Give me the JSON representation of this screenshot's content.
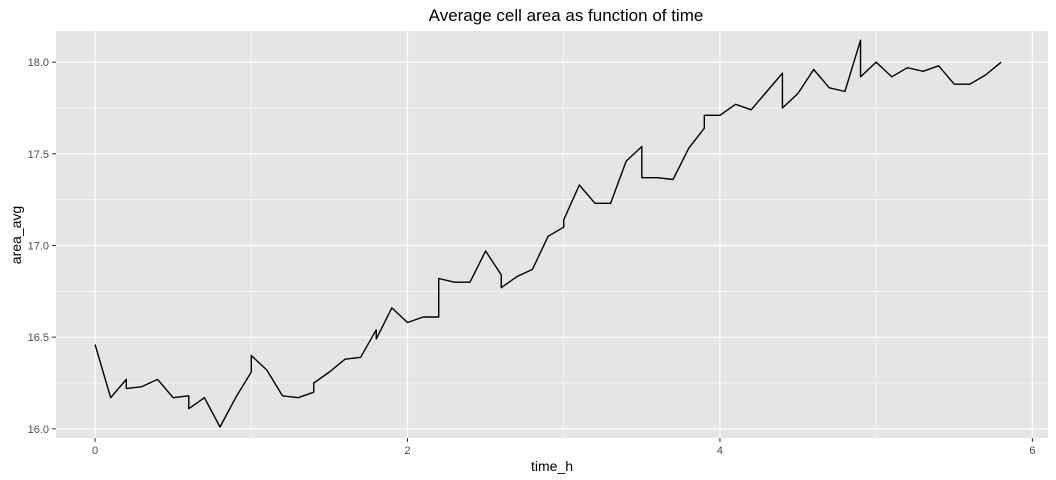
{
  "chart_data": {
    "type": "line",
    "title": "Average cell area as function of time",
    "xlabel": "time_h",
    "ylabel": "area_avg",
    "xlim": [
      -0.25,
      6.1
    ],
    "ylim": [
      15.95,
      18.17
    ],
    "x_ticks": [
      0,
      2,
      4,
      6
    ],
    "x_tick_labels": [
      "0",
      "2",
      "4",
      "6"
    ],
    "y_ticks": [
      16.0,
      16.5,
      17.0,
      17.5,
      18.0
    ],
    "y_tick_labels": [
      "16.0",
      "16.5",
      "17.0",
      "17.5",
      "18.0"
    ],
    "grid": true,
    "panel_background": "#e5e5e5",
    "grid_color": "#ffffff",
    "line_color": "#000000",
    "series": [
      {
        "x": [
          0.0,
          0.1,
          0.2,
          0.2,
          0.3,
          0.4,
          0.5,
          0.6,
          0.6,
          0.7,
          0.8,
          0.9,
          1.0,
          1.0,
          1.1,
          1.2,
          1.3,
          1.4,
          1.4,
          1.5,
          1.6,
          1.7,
          1.8,
          1.8,
          1.9,
          2.0,
          2.1,
          2.2,
          2.2,
          2.3,
          2.4,
          2.5,
          2.6,
          2.6,
          2.7,
          2.8,
          2.9,
          3.0,
          3.0,
          3.1,
          3.2,
          3.3,
          3.4,
          3.5,
          3.5,
          3.6,
          3.7,
          3.8,
          3.9,
          3.9,
          4.0,
          4.1,
          4.2,
          4.3,
          4.4,
          4.4,
          4.5,
          4.6,
          4.7,
          4.8,
          4.9,
          4.9,
          5.0,
          5.1,
          5.2,
          5.3,
          5.4,
          5.5,
          5.6,
          5.7,
          5.8
        ],
        "y": [
          16.46,
          16.17,
          16.27,
          16.22,
          16.23,
          16.27,
          16.17,
          16.18,
          16.11,
          16.17,
          16.01,
          16.17,
          16.31,
          16.4,
          16.32,
          16.18,
          16.17,
          16.2,
          16.25,
          16.31,
          16.38,
          16.39,
          16.54,
          16.49,
          16.66,
          16.58,
          16.61,
          16.61,
          16.82,
          16.8,
          16.8,
          16.97,
          16.84,
          16.77,
          16.83,
          16.87,
          17.05,
          17.1,
          17.14,
          17.33,
          17.23,
          17.23,
          17.46,
          17.54,
          17.37,
          17.37,
          17.36,
          17.53,
          17.64,
          17.71,
          17.71,
          17.77,
          17.74,
          17.84,
          17.94,
          17.75,
          17.83,
          17.96,
          17.86,
          17.84,
          18.12,
          17.92,
          18.0,
          17.92,
          17.97,
          17.95,
          17.98,
          17.88,
          17.88,
          17.93,
          18.0
        ]
      }
    ]
  }
}
